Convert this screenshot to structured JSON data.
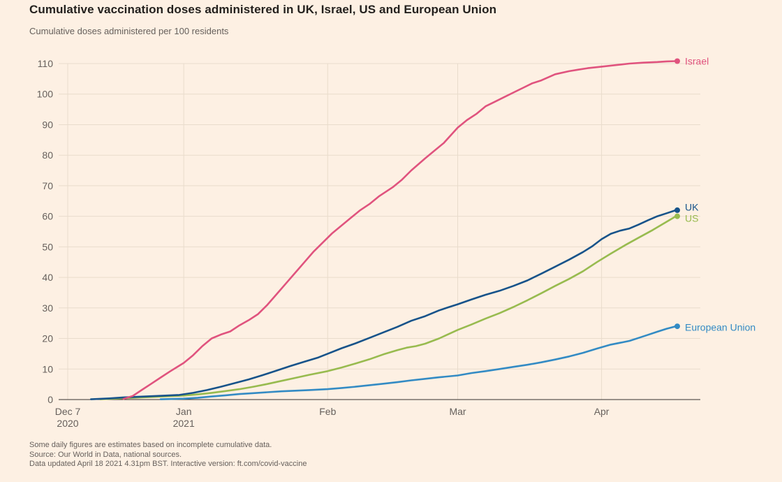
{
  "header": {
    "title": "Cumulative vaccination doses administered in UK, Israel, US and European Union",
    "subtitle": "Cumulative doses administered per 100 residents"
  },
  "footer": {
    "note": "Some daily figures are estimates based on incomplete cumulative data.",
    "source": "Source: Our World in Data, national sources.",
    "updated": "Data updated April 18 2021 4.31pm BST. Interactive version: ft.com/covid-vaccine"
  },
  "colors": {
    "background": "#FDF0E3",
    "grid": "#e9dccc",
    "baseline": "#33302e",
    "text": "#66605c",
    "title": "#24211e"
  },
  "chart_data": {
    "type": "line",
    "title": "Cumulative vaccination doses administered in UK, Israel, US and European Union",
    "subtitle": "Cumulative doses administered per 100 residents",
    "xlabel": "",
    "ylabel": "Cumulative doses administered per 100 residents",
    "x_unit": "days since Dec 7 2020",
    "ylim": [
      0,
      114
    ],
    "grid": true,
    "legend_position": "line-end-labels",
    "y_ticks": [
      0,
      10,
      20,
      30,
      40,
      50,
      60,
      70,
      80,
      90,
      100,
      110
    ],
    "x_ticks": [
      {
        "day": 0,
        "label": "Dec 7",
        "sublabel": "2020"
      },
      {
        "day": 25,
        "label": "Jan",
        "sublabel": "2021"
      },
      {
        "day": 56,
        "label": "Feb"
      },
      {
        "day": 84,
        "label": "Mar"
      },
      {
        "day": 115,
        "label": "Apr"
      }
    ],
    "series": [
      {
        "name": "Israel",
        "color": "#e0537e",
        "end_value": 110.8,
        "points": [
          [
            12,
            0.2
          ],
          [
            14,
            1.2
          ],
          [
            16,
            3.2
          ],
          [
            18,
            5.2
          ],
          [
            20,
            7.2
          ],
          [
            22,
            9.2
          ],
          [
            25,
            12
          ],
          [
            27,
            14.5
          ],
          [
            29,
            17.5
          ],
          [
            31,
            20
          ],
          [
            33,
            21.3
          ],
          [
            35,
            22.3
          ],
          [
            37,
            24.3
          ],
          [
            39,
            26
          ],
          [
            41,
            28
          ],
          [
            43,
            31
          ],
          [
            45,
            34.5
          ],
          [
            47,
            38
          ],
          [
            49,
            41.5
          ],
          [
            51,
            45
          ],
          [
            53,
            48.5
          ],
          [
            55,
            51.5
          ],
          [
            57,
            54.5
          ],
          [
            59,
            57
          ],
          [
            61,
            59.5
          ],
          [
            63,
            62
          ],
          [
            65,
            64
          ],
          [
            67,
            66.5
          ],
          [
            70,
            69.5
          ],
          [
            72,
            72
          ],
          [
            74,
            75
          ],
          [
            77,
            79
          ],
          [
            79,
            81.5
          ],
          [
            81,
            84
          ],
          [
            84,
            89
          ],
          [
            86,
            91.5
          ],
          [
            88,
            93.5
          ],
          [
            90,
            96
          ],
          [
            92,
            97.5
          ],
          [
            94,
            99
          ],
          [
            96,
            100.5
          ],
          [
            98,
            102
          ],
          [
            100,
            103.5
          ],
          [
            102,
            104.5
          ],
          [
            105,
            106.5
          ],
          [
            108,
            107.5
          ],
          [
            110,
            108
          ],
          [
            112,
            108.5
          ],
          [
            115,
            109
          ],
          [
            118,
            109.5
          ],
          [
            121,
            110
          ],
          [
            124,
            110.3
          ],
          [
            127,
            110.5
          ],
          [
            129,
            110.7
          ],
          [
            131,
            110.8
          ]
        ]
      },
      {
        "name": "UK",
        "color": "#17538a",
        "end_value": 62,
        "points": [
          [
            5,
            0.1
          ],
          [
            9,
            0.4
          ],
          [
            12,
            0.7
          ],
          [
            15,
            0.9
          ],
          [
            18,
            1.1
          ],
          [
            21,
            1.3
          ],
          [
            24,
            1.5
          ],
          [
            27,
            2.2
          ],
          [
            30,
            3.1
          ],
          [
            33,
            4.2
          ],
          [
            36,
            5.4
          ],
          [
            39,
            6.6
          ],
          [
            42,
            8
          ],
          [
            45,
            9.5
          ],
          [
            48,
            11
          ],
          [
            51,
            12.4
          ],
          [
            54,
            13.8
          ],
          [
            56,
            15
          ],
          [
            59,
            16.8
          ],
          [
            62,
            18.4
          ],
          [
            65,
            20.2
          ],
          [
            68,
            22
          ],
          [
            71,
            23.8
          ],
          [
            74,
            25.8
          ],
          [
            77,
            27.3
          ],
          [
            80,
            29.2
          ],
          [
            82,
            30.2
          ],
          [
            84,
            31.2
          ],
          [
            87,
            32.8
          ],
          [
            90,
            34.3
          ],
          [
            93,
            35.6
          ],
          [
            96,
            37.2
          ],
          [
            99,
            39
          ],
          [
            102,
            41.2
          ],
          [
            105,
            43.5
          ],
          [
            108,
            45.8
          ],
          [
            111,
            48.3
          ],
          [
            113,
            50.2
          ],
          [
            115,
            52.5
          ],
          [
            117,
            54.3
          ],
          [
            119,
            55.3
          ],
          [
            121,
            56
          ],
          [
            123,
            57.3
          ],
          [
            125,
            58.7
          ],
          [
            127,
            60
          ],
          [
            129,
            61
          ],
          [
            131,
            62
          ]
        ]
      },
      {
        "name": "US",
        "color": "#98bb4f",
        "end_value": 60,
        "points": [
          [
            7,
            0.1
          ],
          [
            10,
            0.3
          ],
          [
            13,
            0.5
          ],
          [
            16,
            0.7
          ],
          [
            19,
            0.9
          ],
          [
            22,
            1.1
          ],
          [
            25,
            1.3
          ],
          [
            28,
            1.7
          ],
          [
            31,
            2.2
          ],
          [
            34,
            2.8
          ],
          [
            37,
            3.4
          ],
          [
            40,
            4.2
          ],
          [
            43,
            5.1
          ],
          [
            46,
            6.1
          ],
          [
            49,
            7.1
          ],
          [
            52,
            8.1
          ],
          [
            56,
            9.3
          ],
          [
            59,
            10.5
          ],
          [
            62,
            11.8
          ],
          [
            65,
            13.2
          ],
          [
            68,
            14.8
          ],
          [
            71,
            16.2
          ],
          [
            73,
            17
          ],
          [
            75,
            17.5
          ],
          [
            77,
            18.3
          ],
          [
            80,
            20
          ],
          [
            84,
            22.8
          ],
          [
            87,
            24.6
          ],
          [
            90,
            26.5
          ],
          [
            93,
            28.3
          ],
          [
            96,
            30.3
          ],
          [
            99,
            32.5
          ],
          [
            102,
            34.8
          ],
          [
            105,
            37.2
          ],
          [
            108,
            39.5
          ],
          [
            111,
            42
          ],
          [
            114,
            45
          ],
          [
            117,
            47.8
          ],
          [
            120,
            50.5
          ],
          [
            123,
            53
          ],
          [
            126,
            55.5
          ],
          [
            129,
            58.2
          ],
          [
            131,
            60
          ]
        ]
      },
      {
        "name": "European Union",
        "color": "#338bc4",
        "end_value": 24,
        "points": [
          [
            20,
            0.1
          ],
          [
            23,
            0.2
          ],
          [
            25,
            0.3
          ],
          [
            28,
            0.6
          ],
          [
            31,
            1
          ],
          [
            34,
            1.4
          ],
          [
            37,
            1.8
          ],
          [
            40,
            2.1
          ],
          [
            43,
            2.4
          ],
          [
            46,
            2.7
          ],
          [
            49,
            2.9
          ],
          [
            52,
            3.1
          ],
          [
            56,
            3.4
          ],
          [
            59,
            3.8
          ],
          [
            62,
            4.2
          ],
          [
            65,
            4.7
          ],
          [
            68,
            5.2
          ],
          [
            71,
            5.7
          ],
          [
            74,
            6.3
          ],
          [
            77,
            6.8
          ],
          [
            80,
            7.3
          ],
          [
            84,
            7.9
          ],
          [
            87,
            8.7
          ],
          [
            90,
            9.3
          ],
          [
            93,
            10
          ],
          [
            96,
            10.7
          ],
          [
            99,
            11.4
          ],
          [
            102,
            12.2
          ],
          [
            105,
            13.1
          ],
          [
            108,
            14.1
          ],
          [
            111,
            15.3
          ],
          [
            114,
            16.7
          ],
          [
            117,
            18
          ],
          [
            119,
            18.6
          ],
          [
            121,
            19.2
          ],
          [
            123,
            20.2
          ],
          [
            125,
            21.2
          ],
          [
            127,
            22.2
          ],
          [
            129,
            23.2
          ],
          [
            131,
            24
          ]
        ]
      }
    ]
  }
}
